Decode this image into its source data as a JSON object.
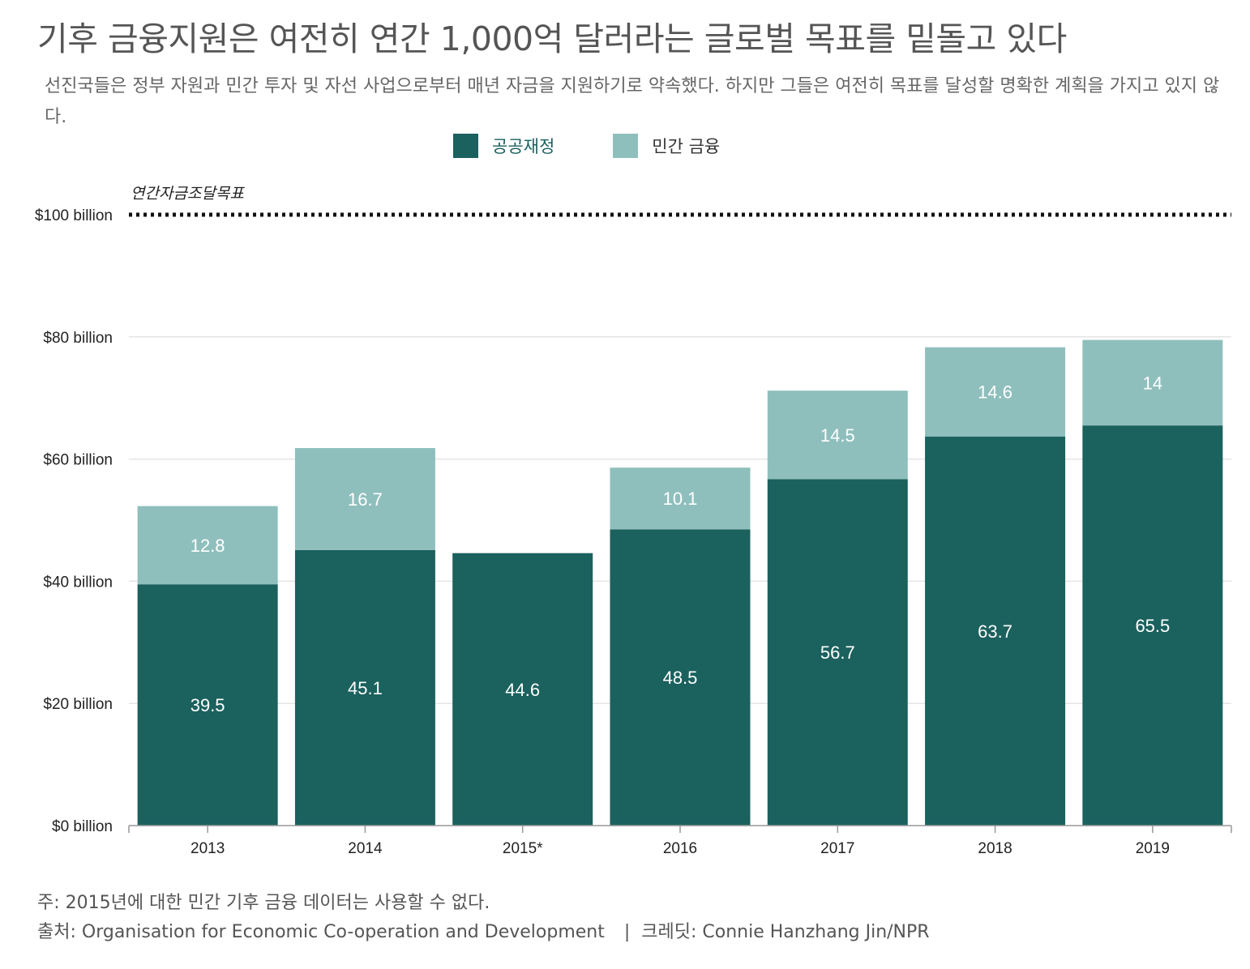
{
  "title": "기후 금융지원은 여전히 연간 1,000억 달러라는 글로벌 목표를 밑돌고 있다",
  "subtitle": "선진국들은 정부 자원과 민간 투자 및 자선 사업으로부터 매년 자금을 지원하기로 약속했다. 하지만 그들은 여전히 목표를 달성할 명확한 계획을 가지고 있지 않다.",
  "legend": {
    "public_label": "공공재정",
    "private_label": "민간 금융"
  },
  "colors": {
    "public": "#1b615e",
    "private": "#8fbfbd",
    "public_legend_text": "#1b615e",
    "private_legend_text": "#333333"
  },
  "footnote": {
    "note": "주: 2015년에 대한 민간 기후 금융 데이터는 사용할 수 없다.",
    "source": "출처: Organisation for Economic Co-operation and Development",
    "separator": "|",
    "credit": "크레딧: Connie Hanzhang Jin/NPR"
  },
  "chart_data": {
    "type": "bar",
    "stacked": true,
    "categories": [
      "2013",
      "2014",
      "2015*",
      "2016",
      "2017",
      "2018",
      "2019"
    ],
    "series": [
      {
        "name": "공공재정",
        "values": [
          39.5,
          45.1,
          44.6,
          48.5,
          56.7,
          63.7,
          65.5
        ]
      },
      {
        "name": "민간 금융",
        "values": [
          12.8,
          16.7,
          null,
          10.1,
          14.5,
          14.6,
          14
        ]
      }
    ],
    "data_labels": {
      "공공재정": [
        "39.5",
        "45.1",
        "44.6",
        "48.5",
        "56.7",
        "63.7",
        "65.5"
      ],
      "민간 금융": [
        "12.8",
        "16.7",
        "",
        "10.1",
        "14.5",
        "14.6",
        "14"
      ]
    },
    "ylim": [
      0,
      100
    ],
    "yticks": [
      0,
      20,
      40,
      60,
      80,
      100
    ],
    "ytick_labels": [
      "$0 billion",
      "$20 billion",
      "$40 billion",
      "$60 billion",
      "$80 billion",
      "$100 billion"
    ],
    "target": {
      "value": 100,
      "label": "연간자금조달목표",
      "style": "dotted"
    },
    "grid": true,
    "legend_position": "top"
  }
}
